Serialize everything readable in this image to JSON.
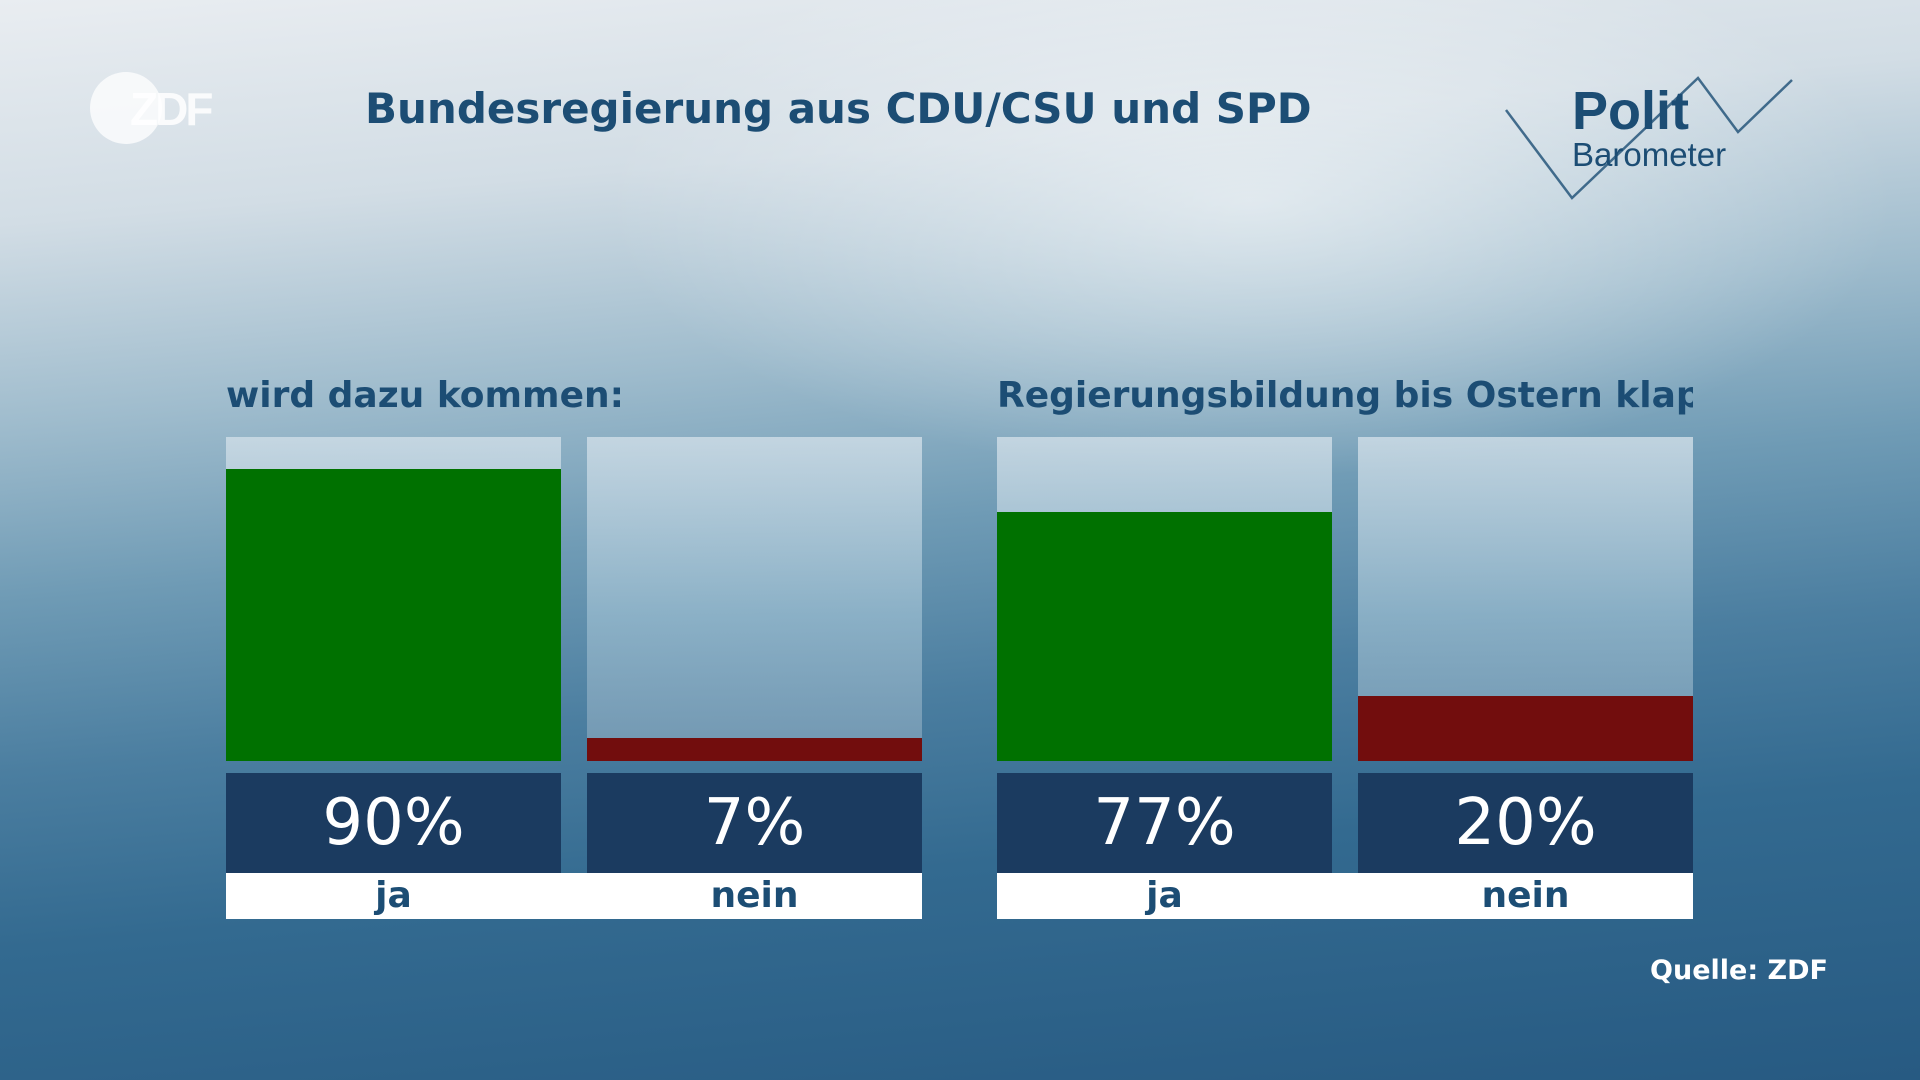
{
  "logo": {
    "zdf_text": "ZDF"
  },
  "title": "Bundesregierung aus CDU/CSU und SPD",
  "politbarometer": {
    "line1": "Polit",
    "line2": "Barometer"
  },
  "source": "Quelle: ZDF",
  "colors": {
    "yes": "#007100",
    "no": "#720d0d",
    "value_box": "#1b3b60",
    "title": "#1c4d74"
  },
  "chart_data": [
    {
      "type": "bar",
      "title": "wird dazu kommen:",
      "categories": [
        "ja",
        "nein"
      ],
      "values": [
        90,
        7
      ],
      "value_labels": [
        "90%",
        "7%"
      ],
      "ylim": [
        0,
        100
      ],
      "unit": "%"
    },
    {
      "type": "bar",
      "title": "Regierungsbildung bis Ostern klappt:",
      "categories": [
        "ja",
        "nein"
      ],
      "values": [
        77,
        20
      ],
      "value_labels": [
        "77%",
        "20%"
      ],
      "ylim": [
        0,
        100
      ],
      "unit": "%"
    }
  ]
}
